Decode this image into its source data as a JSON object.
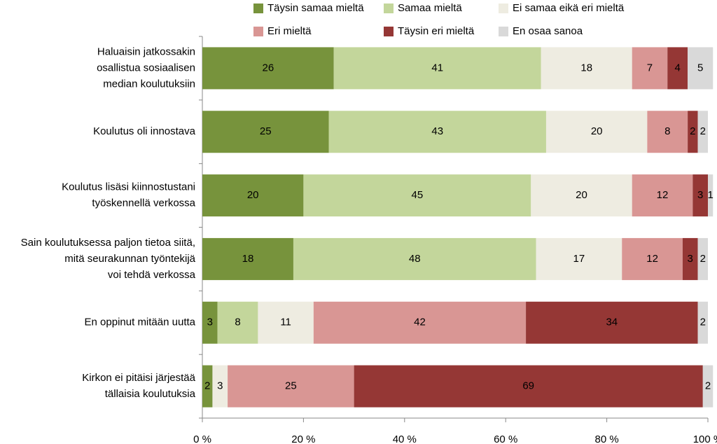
{
  "chart_data": {
    "type": "stacked-barh",
    "categories": [
      [
        "Haluaisin jatkossakin",
        "osallistua sosiaalisen",
        "median koulutuksiin"
      ],
      [
        "Koulutus oli innostava"
      ],
      [
        "Koulutus lisäsi kiinnostustani",
        "työskennellä verkossa"
      ],
      [
        "Sain koulutuksessa paljon tietoa siitä,",
        "mitä seurakunnan työntekijä",
        "voi tehdä verkossa"
      ],
      [
        "En oppinut mitään uutta"
      ],
      [
        "Kirkon ei pitäisi järjestää",
        "tällaisia koulutuksia"
      ]
    ],
    "series": [
      {
        "name": "Täysin samaa mieltä",
        "color": "#77933c",
        "values": [
          26,
          25,
          20,
          18,
          3,
          2
        ]
      },
      {
        "name": "Samaa mieltä",
        "color": "#c3d69b",
        "values": [
          41,
          43,
          45,
          48,
          8,
          null
        ]
      },
      {
        "name": "Ei samaa eikä eri mieltä",
        "color": "#eeece1",
        "values": [
          18,
          20,
          20,
          17,
          11,
          3
        ]
      },
      {
        "name": "Eri mieltä",
        "color": "#d99694",
        "values": [
          7,
          8,
          12,
          12,
          42,
          25
        ]
      },
      {
        "name": "Täysin eri mieltä",
        "color": "#953735",
        "values": [
          4,
          2,
          3,
          3,
          34,
          69
        ]
      },
      {
        "name": "En osaa sanoa",
        "color": "#d9d9d9",
        "values": [
          5,
          2,
          1,
          2,
          2,
          2
        ]
      }
    ],
    "xlim": [
      0,
      100
    ],
    "xticks": [
      {
        "value": 0,
        "label": "0 %"
      },
      {
        "value": 20,
        "label": "20 %"
      },
      {
        "value": 40,
        "label": "40 %"
      },
      {
        "value": 60,
        "label": "60 %"
      },
      {
        "value": 80,
        "label": "80 %"
      },
      {
        "value": 100,
        "label": "100 %"
      }
    ],
    "legend": "top"
  }
}
